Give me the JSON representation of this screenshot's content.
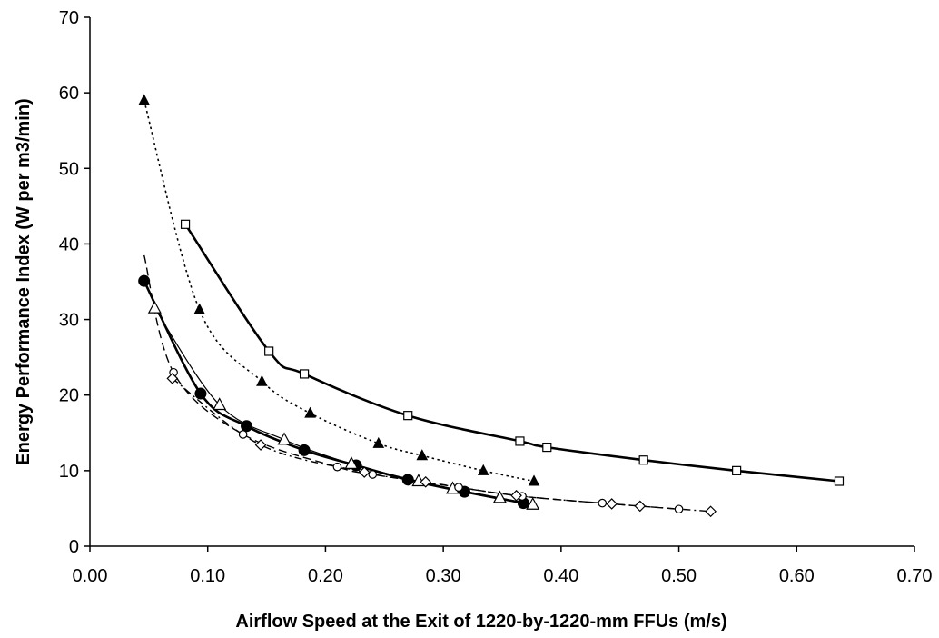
{
  "chart_data": {
    "type": "line",
    "title": "",
    "xlabel": "Airflow Speed at the Exit of 1220-by-1220-mm FFUs (m/s)",
    "ylabel": "Energy Performance Index (W per m3/min)",
    "xlim": [
      0,
      0.7
    ],
    "ylim": [
      0,
      70
    ],
    "xticks": [
      "0.00",
      "0.10",
      "0.20",
      "0.30",
      "0.40",
      "0.50",
      "0.60",
      "0.70"
    ],
    "yticks": [
      "0",
      "10",
      "20",
      "30",
      "40",
      "50",
      "60",
      "70"
    ],
    "grid": false,
    "legend": "none",
    "series": [
      {
        "marker": "open-square",
        "line": "solid-thick",
        "x": [
          0.081,
          0.152,
          0.182,
          0.27,
          0.365,
          0.388,
          0.47,
          0.549,
          0.636
        ],
        "y": [
          42.6,
          25.8,
          22.8,
          17.3,
          13.9,
          13.1,
          11.4,
          10.0,
          8.6
        ]
      },
      {
        "marker": "filled-triangle",
        "line": "dotted",
        "x": [
          0.046,
          0.093,
          0.146,
          0.187,
          0.245,
          0.282,
          0.334,
          0.377
        ],
        "y": [
          59.0,
          31.3,
          21.8,
          17.6,
          13.6,
          12.0,
          10.0,
          8.6
        ]
      },
      {
        "marker": "filled-circle",
        "line": "solid-thick",
        "x": [
          0.046,
          0.094,
          0.133,
          0.182,
          0.226,
          0.27,
          0.318,
          0.368
        ],
        "y": [
          35.1,
          20.2,
          15.9,
          12.7,
          10.7,
          8.8,
          7.2,
          5.7
        ]
      },
      {
        "marker": "open-triangle",
        "line": "solid-thin",
        "x": [
          0.055,
          0.11,
          0.165,
          0.222,
          0.279,
          0.308,
          0.348,
          0.376
        ],
        "y": [
          31.5,
          18.7,
          14.1,
          10.9,
          8.6,
          7.6,
          6.4,
          5.5
        ]
      },
      {
        "marker": "open-circle",
        "line": "dashed",
        "x": [
          0.046,
          0.071,
          0.13,
          0.21,
          0.24,
          0.313,
          0.367,
          0.435,
          0.5
        ],
        "y": [
          38.5,
          23.0,
          14.8,
          10.5,
          9.5,
          7.8,
          6.6,
          5.7,
          4.9
        ]
      },
      {
        "marker": "open-diamond",
        "line": "dash-dot",
        "x": [
          0.07,
          0.145,
          0.233,
          0.285,
          0.362,
          0.443,
          0.467,
          0.527
        ],
        "y": [
          22.2,
          13.4,
          9.8,
          8.5,
          6.7,
          5.6,
          5.3,
          4.6
        ]
      }
    ]
  }
}
